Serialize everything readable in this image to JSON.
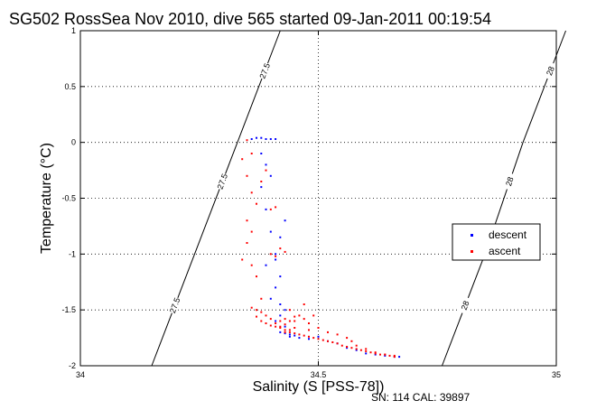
{
  "chart_data": {
    "type": "scatter",
    "title": "SG502 RossSea Nov 2010, dive 565 started 09-Jan-2011 00:19:54",
    "xlabel": "Salinity (S [PSS-78])",
    "ylabel": "Temperature (°C)",
    "xlim": [
      34,
      35
    ],
    "ylim": [
      -2,
      1
    ],
    "xticks": [
      34,
      34.5,
      35
    ],
    "yticks": [
      -2,
      -1.5,
      -1,
      -0.5,
      0,
      0.5,
      1
    ],
    "xtick_labels": [
      "34",
      "34.5",
      "35"
    ],
    "ytick_labels": [
      "-2",
      "-1.5",
      "-1",
      "-0.5",
      "0",
      "0.5",
      "1"
    ],
    "grid": true,
    "legend_position": "right",
    "footnote": "SN: 114  CAL: 39897",
    "contours": [
      {
        "label": "27.5",
        "x": [
          34.15,
          34.24,
          34.33,
          34.42
        ],
        "y": [
          -2,
          -1,
          0,
          1
        ]
      },
      {
        "label": "28",
        "x": [
          34.76,
          34.85,
          34.93,
          35.02
        ],
        "y": [
          -2,
          -1,
          0,
          1
        ]
      }
    ],
    "series": [
      {
        "name": "descent",
        "color": "#0000ff",
        "x": [
          34.36,
          34.37,
          34.38,
          34.39,
          34.4,
          34.41,
          34.38,
          34.39,
          34.4,
          34.38,
          34.39,
          34.4,
          34.41,
          34.39,
          34.42,
          34.41,
          34.4,
          34.43,
          34.42,
          34.41,
          34.42,
          34.43,
          34.42,
          34.41,
          34.43,
          34.44,
          34.45,
          34.42,
          34.43,
          34.44,
          34.46,
          34.48,
          34.5,
          34.52,
          34.54,
          34.56,
          34.58,
          34.6,
          34.62,
          34.64,
          34.66,
          34.67
        ],
        "y": [
          0.03,
          0.04,
          0.04,
          0.03,
          0.03,
          0.03,
          -0.1,
          -0.2,
          -0.3,
          -0.4,
          -0.6,
          -0.8,
          -1.0,
          -1.1,
          -1.2,
          -1.3,
          -1.4,
          -0.7,
          -0.85,
          -1.05,
          -1.45,
          -1.5,
          -1.55,
          -1.6,
          -1.65,
          -1.72,
          -1.73,
          -1.7,
          -1.71,
          -1.74,
          -1.75,
          -1.76,
          -1.74,
          -1.78,
          -1.8,
          -1.84,
          -1.86,
          -1.89,
          -1.9,
          -1.91,
          -1.92,
          -1.92
        ]
      },
      {
        "name": "ascent",
        "color": "#ff0000",
        "x": [
          34.35,
          34.36,
          34.34,
          34.35,
          34.36,
          34.35,
          34.36,
          34.35,
          34.34,
          34.36,
          34.37,
          34.38,
          34.37,
          34.36,
          34.38,
          34.39,
          34.4,
          34.38,
          34.37,
          34.39,
          34.41,
          34.42,
          34.43,
          34.44,
          34.45,
          34.46,
          34.47,
          34.48,
          34.49,
          34.5,
          34.51,
          34.52,
          34.53,
          34.54,
          34.55,
          34.56,
          34.57,
          34.58,
          34.59,
          34.6,
          34.61,
          34.62,
          34.63,
          34.64,
          34.65,
          34.66,
          34.44,
          34.46,
          34.43,
          34.41,
          34.4,
          34.42,
          34.45,
          34.44,
          34.43,
          34.42,
          34.45,
          34.47,
          34.48,
          34.5,
          34.52,
          34.54,
          34.56,
          34.57,
          34.58,
          34.6,
          34.62,
          34.64,
          34.66,
          34.47,
          34.45,
          34.44,
          34.43,
          34.48,
          34.49,
          34.39,
          34.38,
          34.37,
          34.4,
          34.41,
          34.42,
          34.43,
          34.4,
          34.41
        ],
        "y": [
          0.02,
          -0.1,
          -0.15,
          -0.3,
          -0.45,
          -0.7,
          -0.8,
          -0.9,
          -1.05,
          -1.1,
          -1.2,
          -1.4,
          -1.5,
          -1.48,
          -1.52,
          -1.55,
          -1.58,
          -1.6,
          -1.56,
          -1.62,
          -1.65,
          -1.66,
          -1.68,
          -1.7,
          -1.71,
          -1.72,
          -1.73,
          -1.74,
          -1.75,
          -1.76,
          -1.77,
          -1.78,
          -1.79,
          -1.8,
          -1.82,
          -1.83,
          -1.84,
          -1.85,
          -1.86,
          -1.87,
          -1.88,
          -1.89,
          -1.9,
          -1.9,
          -1.91,
          -1.91,
          -1.5,
          -1.55,
          -1.58,
          -1.62,
          -1.64,
          -1.6,
          -1.66,
          -1.68,
          -1.7,
          -1.65,
          -1.6,
          -1.58,
          -1.62,
          -1.66,
          -1.7,
          -1.72,
          -1.75,
          -1.78,
          -1.82,
          -1.85,
          -1.88,
          -1.9,
          -1.92,
          -1.45,
          -1.56,
          -1.6,
          -1.63,
          -1.68,
          -1.55,
          -0.25,
          -0.35,
          -0.55,
          -1.0,
          -1.02,
          -0.95,
          -0.98,
          -0.6,
          -0.58
        ]
      }
    ]
  }
}
